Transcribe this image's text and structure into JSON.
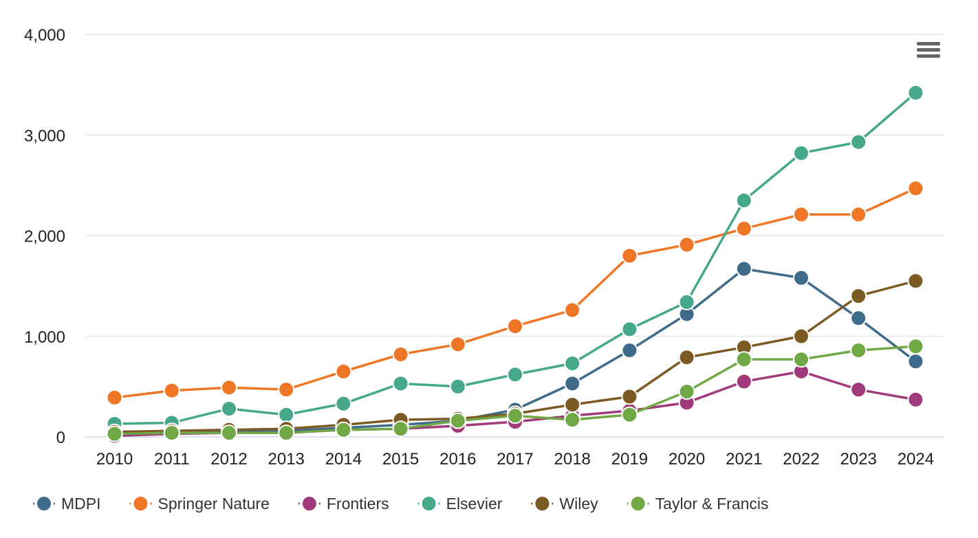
{
  "chart_data": {
    "type": "line",
    "x": [
      "2010",
      "2011",
      "2012",
      "2013",
      "2014",
      "2015",
      "2016",
      "2017",
      "2018",
      "2019",
      "2020",
      "2021",
      "2022",
      "2023",
      "2024"
    ],
    "ylim": [
      0,
      4000
    ],
    "yticks": [
      0,
      1000,
      2000,
      3000,
      4000
    ],
    "ytick_labels": [
      "0",
      "1,000",
      "2,000",
      "3,000",
      "4,000"
    ],
    "grid": true,
    "legend_position": "bottom",
    "series": [
      {
        "name": "MDPI",
        "color": "#3d6b89",
        "values": [
          40,
          40,
          60,
          60,
          90,
          120,
          160,
          270,
          530,
          860,
          1220,
          1670,
          1580,
          1180,
          750
        ]
      },
      {
        "name": "Springer Nature",
        "color": "#ef7624",
        "values": [
          390,
          460,
          490,
          470,
          650,
          820,
          920,
          1100,
          1260,
          1800,
          1910,
          2070,
          2210,
          2210,
          2470
        ]
      },
      {
        "name": "Frontiers",
        "color": "#a03a7a",
        "values": [
          10,
          30,
          40,
          40,
          70,
          80,
          110,
          150,
          210,
          260,
          340,
          550,
          650,
          470,
          370
        ]
      },
      {
        "name": "Elsevier",
        "color": "#45a88a",
        "values": [
          130,
          140,
          280,
          220,
          330,
          530,
          500,
          620,
          730,
          1070,
          1340,
          2350,
          2820,
          2930,
          3420
        ]
      },
      {
        "name": "Wiley",
        "color": "#7b5a23",
        "values": [
          50,
          60,
          70,
          80,
          120,
          170,
          180,
          230,
          320,
          400,
          790,
          890,
          1000,
          1400,
          1550
        ]
      },
      {
        "name": "Taylor & Francis",
        "color": "#6fa844",
        "values": [
          30,
          40,
          40,
          40,
          70,
          80,
          160,
          210,
          170,
          220,
          450,
          770,
          770,
          860,
          900
        ]
      }
    ]
  },
  "menu": {
    "icon": "hamburger-menu-icon",
    "color": "#666666"
  }
}
